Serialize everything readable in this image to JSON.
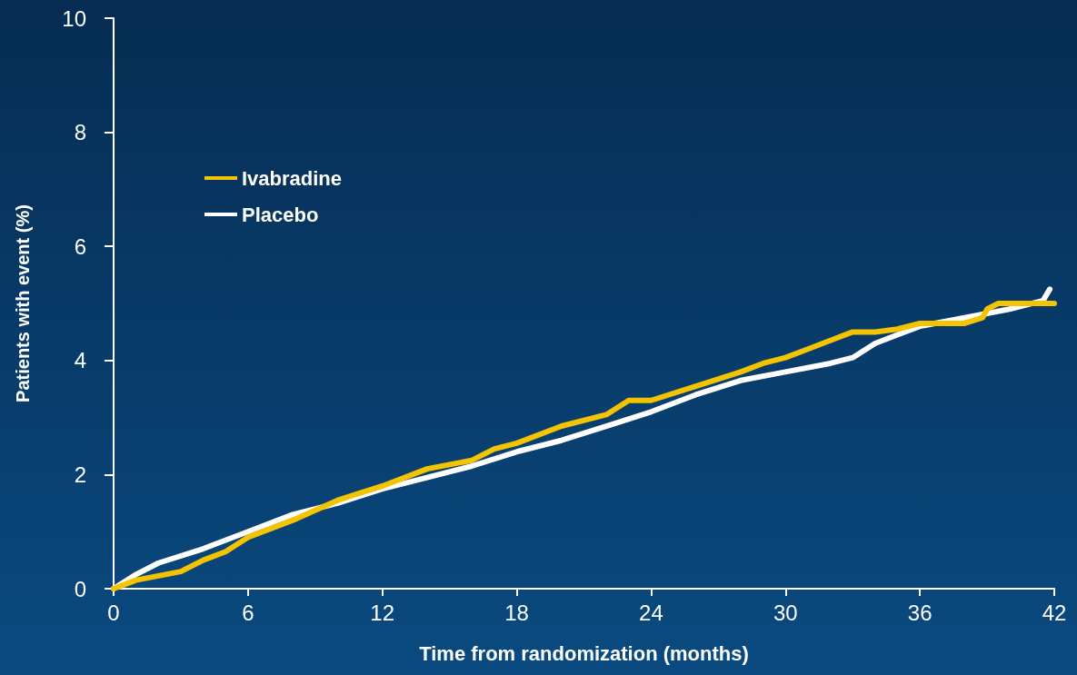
{
  "chart_data": {
    "type": "line",
    "xlabel": "Time from randomization (months)",
    "ylabel": "Patients with event (%)",
    "xlim": [
      0,
      42
    ],
    "xticks": [
      0,
      6,
      12,
      18,
      24,
      30,
      36,
      42
    ],
    "ylim": [
      0,
      10
    ],
    "yticks": [
      0,
      2,
      4,
      6,
      8,
      10
    ],
    "grid": false,
    "legend": "top left",
    "marker": "none",
    "line_style": "solid",
    "series": [
      {
        "name": "Ivabradine",
        "color": "#f5c400",
        "x": [
          0,
          1,
          3,
          4,
          5,
          6,
          8,
          10,
          12,
          14,
          16,
          17,
          18,
          20,
          22,
          23,
          24,
          26,
          28,
          29,
          30,
          31,
          32,
          33,
          34,
          35,
          36,
          38,
          38.8,
          39,
          39.5,
          42
        ],
        "values": [
          0,
          0.15,
          0.3,
          0.5,
          0.65,
          0.9,
          1.2,
          1.55,
          1.8,
          2.1,
          2.25,
          2.45,
          2.55,
          2.85,
          3.05,
          3.3,
          3.3,
          3.55,
          3.8,
          3.95,
          4.05,
          4.2,
          4.35,
          4.5,
          4.5,
          4.55,
          4.65,
          4.65,
          4.75,
          4.9,
          5.0,
          5.0
        ]
      },
      {
        "name": "Placebo",
        "color": "#ffffff",
        "x": [
          0,
          1,
          2,
          4,
          6,
          8,
          10,
          12,
          14,
          16,
          18,
          20,
          22,
          24,
          26,
          28,
          30,
          32,
          33,
          34,
          35,
          36,
          38,
          40,
          41.5,
          41.8
        ],
        "values": [
          0,
          0.25,
          0.45,
          0.7,
          1.0,
          1.3,
          1.5,
          1.75,
          1.95,
          2.15,
          2.4,
          2.6,
          2.85,
          3.1,
          3.4,
          3.65,
          3.8,
          3.95,
          4.05,
          4.3,
          4.45,
          4.6,
          4.75,
          4.9,
          5.05,
          5.25
        ]
      }
    ]
  }
}
